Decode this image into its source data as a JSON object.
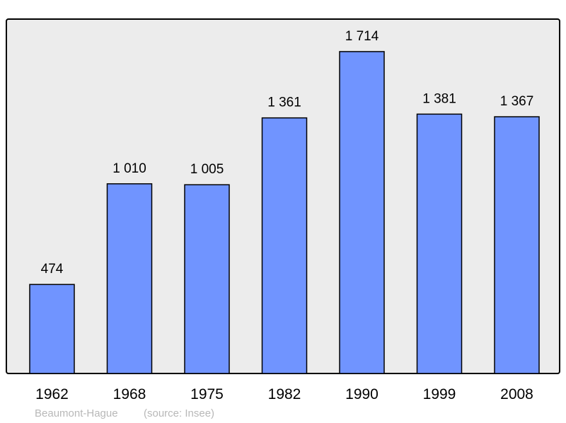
{
  "chart_data": {
    "type": "bar",
    "categories": [
      "1962",
      "1968",
      "1975",
      "1982",
      "1990",
      "1999",
      "2008"
    ],
    "values": [
      474,
      1010,
      1005,
      1361,
      1714,
      1381,
      1367
    ],
    "value_labels": [
      "474",
      "1 010",
      "1 005",
      "1 361",
      "1 714",
      "1 381",
      "1 367"
    ],
    "title": "",
    "xlabel": "",
    "ylabel": "",
    "ylim": [
      0,
      1887
    ],
    "grid": false,
    "bar_color": "#7094ff",
    "background_color": "#ececec"
  },
  "footer": {
    "commune": "Beaumont-Hague",
    "source": "(source: Insee)"
  }
}
